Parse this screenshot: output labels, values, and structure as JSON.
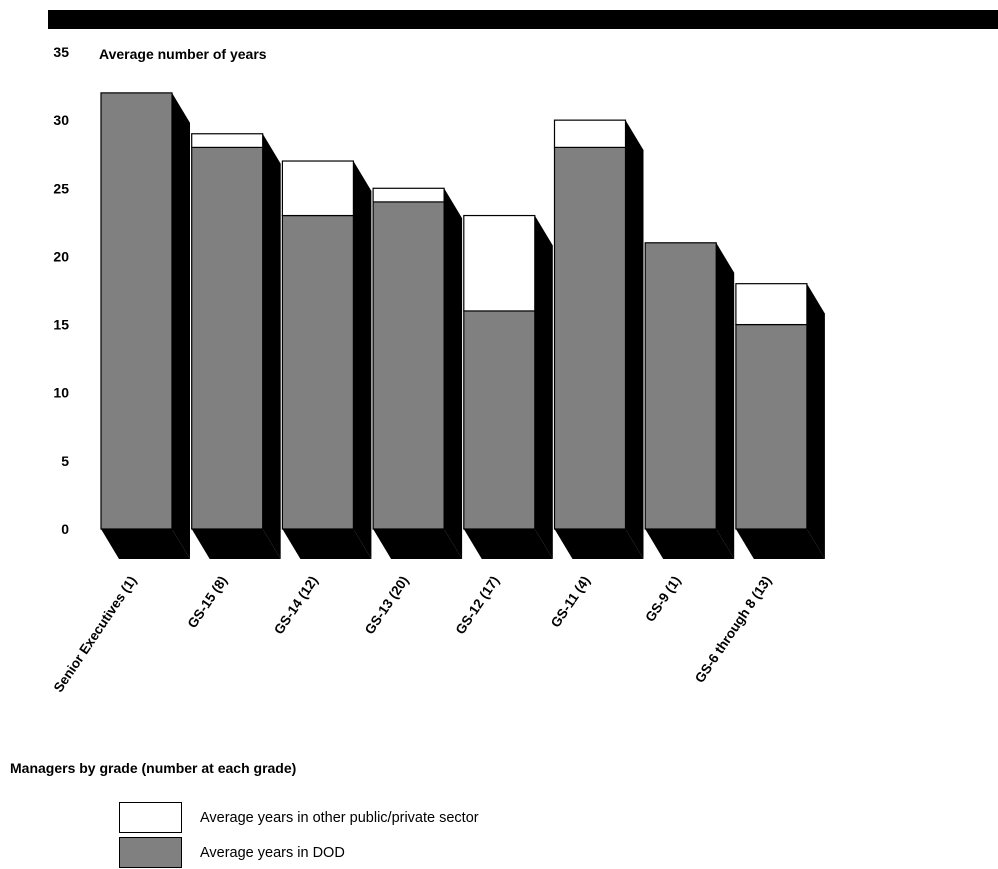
{
  "chart_data": {
    "type": "bar",
    "stacked": true,
    "ylabel": "Average number of years",
    "xlabel": "Managers by grade (number at each grade)",
    "ylim": [
      0,
      35
    ],
    "yticks": [
      "0",
      "5",
      "10",
      "15",
      "20",
      "25",
      "30",
      "35"
    ],
    "categories": [
      "Senior Executives (1)",
      "GS-15 (8)",
      "GS-14 (12)",
      "GS-13 (20)",
      "GS-12 (17)",
      "GS-11 (4)",
      "GS-9 (1)",
      "GS-6 through 8 (13)"
    ],
    "series": [
      {
        "name": "Average years in DOD",
        "color": "#808080",
        "values": [
          32,
          28,
          23,
          24,
          16,
          28,
          21,
          15
        ]
      },
      {
        "name": "Average years in other public/private sector",
        "color": "#ffffff",
        "values": [
          0,
          1,
          4,
          1,
          7,
          2,
          0,
          3
        ]
      }
    ],
    "legend": [
      {
        "label": "Average years in other public/private sector",
        "color": "#ffffff"
      },
      {
        "label": "Average years in DOD",
        "color": "#808080"
      }
    ],
    "legend_position": "bottom-left"
  }
}
